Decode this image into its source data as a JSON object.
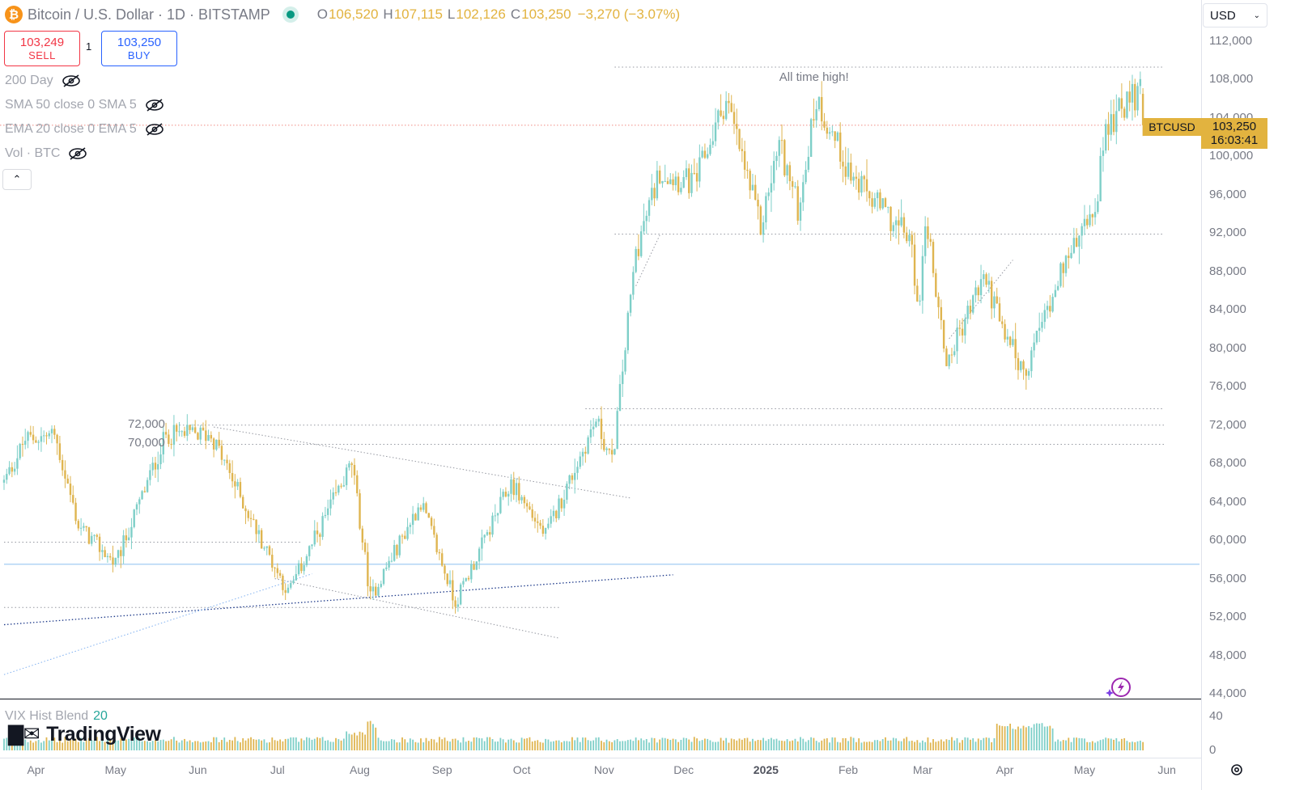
{
  "header": {
    "logo_letter": "₿",
    "symbol_title": "Bitcoin / U.S. Dollar · 1D · BITSTAMP",
    "open_label": "O",
    "open": "106,520",
    "high_label": "H",
    "high": "107,115",
    "low_label": "L",
    "low": "102,126",
    "close_label": "C",
    "close": "103,250",
    "change": "−3,270 (−3.07%)"
  },
  "trade": {
    "sell_price": "103,249",
    "sell_label": "SELL",
    "buy_price": "103,250",
    "buy_label": "BUY",
    "quantity": "1"
  },
  "indicators": [
    {
      "label": "200 Day"
    },
    {
      "label": "SMA 50 close 0 SMA 5"
    },
    {
      "label": "EMA 20 close 0 EMA 5"
    },
    {
      "label": "Vol · BTC"
    }
  ],
  "currency": "USD",
  "annotations": {
    "ath": "All time high!",
    "level_72": "72,000",
    "level_70": "70,000"
  },
  "last_price": {
    "symbol": "BTCUSD",
    "price": "103,250",
    "countdown": "16:03:41"
  },
  "sub_pane": {
    "name": "VIX Hist Blend",
    "length": "20"
  },
  "brand": "TradingView",
  "colors": {
    "up": "#7ecfc8",
    "down": "#dfb550",
    "accent": "#2962ff",
    "sell": "#f23645"
  },
  "chart_data": {
    "type": "candlestick",
    "y_ticks": [
      "112,000",
      "108,000",
      "104,000",
      "100,000",
      "96,000",
      "92,000",
      "88,000",
      "84,000",
      "80,000",
      "76,000",
      "72,000",
      "68,000",
      "64,000",
      "60,000",
      "56,000",
      "52,000",
      "48,000",
      "44,000"
    ],
    "ylim": [
      44000,
      112000
    ],
    "x_ticks": [
      {
        "label": "Apr",
        "date": "2024-04-01"
      },
      {
        "label": "May",
        "date": "2024-05-01"
      },
      {
        "label": "Jun",
        "date": "2024-06-01"
      },
      {
        "label": "Jul",
        "date": "2024-07-01"
      },
      {
        "label": "Aug",
        "date": "2024-08-01"
      },
      {
        "label": "Sep",
        "date": "2024-09-01"
      },
      {
        "label": "Oct",
        "date": "2024-10-01"
      },
      {
        "label": "Nov",
        "date": "2024-11-01"
      },
      {
        "label": "Dec",
        "date": "2024-12-01"
      },
      {
        "label": "2025",
        "date": "2025-01-01",
        "bold": true
      },
      {
        "label": "Feb",
        "date": "2025-02-01"
      },
      {
        "label": "Mar",
        "date": "2025-03-01"
      },
      {
        "label": "Apr",
        "date": "2025-04-01"
      },
      {
        "label": "May",
        "date": "2025-05-01"
      },
      {
        "label": "Jun",
        "date": "2025-06-01"
      }
    ],
    "close_keypoints": [
      [
        "2024-03-20",
        66000
      ],
      [
        "2024-03-28",
        70500
      ],
      [
        "2024-04-08",
        71000
      ],
      [
        "2024-04-17",
        61500
      ],
      [
        "2024-05-01",
        57500
      ],
      [
        "2024-05-20",
        71000
      ],
      [
        "2024-06-06",
        71000
      ],
      [
        "2024-06-24",
        60500
      ],
      [
        "2024-07-05",
        54500
      ],
      [
        "2024-07-29",
        68000
      ],
      [
        "2024-08-05",
        54000
      ],
      [
        "2024-08-24",
        64000
      ],
      [
        "2024-09-06",
        53500
      ],
      [
        "2024-09-27",
        66000
      ],
      [
        "2024-10-10",
        60500
      ],
      [
        "2024-10-29",
        72500
      ],
      [
        "2024-11-04",
        68000
      ],
      [
        "2024-11-13",
        90000
      ],
      [
        "2024-11-22",
        98500
      ],
      [
        "2024-12-05",
        97000
      ],
      [
        "2024-12-17",
        106000
      ],
      [
        "2024-12-30",
        92500
      ],
      [
        "2025-01-06",
        101500
      ],
      [
        "2025-01-13",
        94500
      ],
      [
        "2025-01-20",
        106000
      ],
      [
        "2025-02-03",
        97500
      ],
      [
        "2025-02-24",
        91500
      ],
      [
        "2025-02-28",
        84000
      ],
      [
        "2025-03-02",
        94000
      ],
      [
        "2025-03-10",
        78500
      ],
      [
        "2025-03-24",
        87500
      ],
      [
        "2025-04-08",
        77000
      ],
      [
        "2025-04-21",
        87500
      ],
      [
        "2025-05-05",
        94500
      ],
      [
        "2025-05-09",
        103000
      ],
      [
        "2025-05-22",
        107000
      ],
      [
        "2025-05-23",
        103250
      ]
    ],
    "last_candle": {
      "open": 106520,
      "high": 107115,
      "low": 102126,
      "close": 103250
    },
    "levels": [
      {
        "price": 109300,
        "from": "2024-11-05",
        "to": "2025-05-31"
      },
      {
        "price": 91900,
        "from": "2024-11-05",
        "to": "2025-05-31"
      },
      {
        "price": 73700,
        "from": "2024-10-25",
        "to": "2025-05-31"
      },
      {
        "price": 72000,
        "from": "2024-05-25",
        "to": "2025-05-31"
      },
      {
        "price": 70000,
        "from": "2024-05-25",
        "to": "2025-05-31"
      },
      {
        "price": 59800,
        "from": "2024-03-20",
        "to": "2024-07-10"
      },
      {
        "price": 53000,
        "from": "2024-03-20",
        "to": "2024-10-15"
      },
      {
        "price": 57500,
        "from": "2024-03-20",
        "to": "2025-06-30"
      }
    ],
    "trendlines": [
      {
        "from": [
          "2024-06-07",
          71800
        ],
        "to": [
          "2024-11-11",
          64400
        ]
      },
      {
        "from": [
          "2024-06-30",
          56000
        ],
        "to": [
          "2024-10-15",
          49800
        ]
      },
      {
        "from": [
          "2024-03-20",
          51200
        ],
        "to": [
          "2024-11-27",
          56400
        ]
      },
      {
        "from": [
          "2024-03-20",
          46000
        ],
        "to": [
          "2024-07-14",
          56500
        ]
      },
      {
        "from": [
          "2024-11-13",
          86500
        ],
        "to": [
          "2024-11-22",
          91800
        ]
      },
      {
        "from": [
          "2025-03-11",
          81000
        ],
        "to": [
          "2025-04-04",
          89200
        ]
      }
    ],
    "sub_pane": {
      "y_ticks": [
        "40",
        "0"
      ],
      "ylim": [
        0,
        45
      ]
    }
  }
}
